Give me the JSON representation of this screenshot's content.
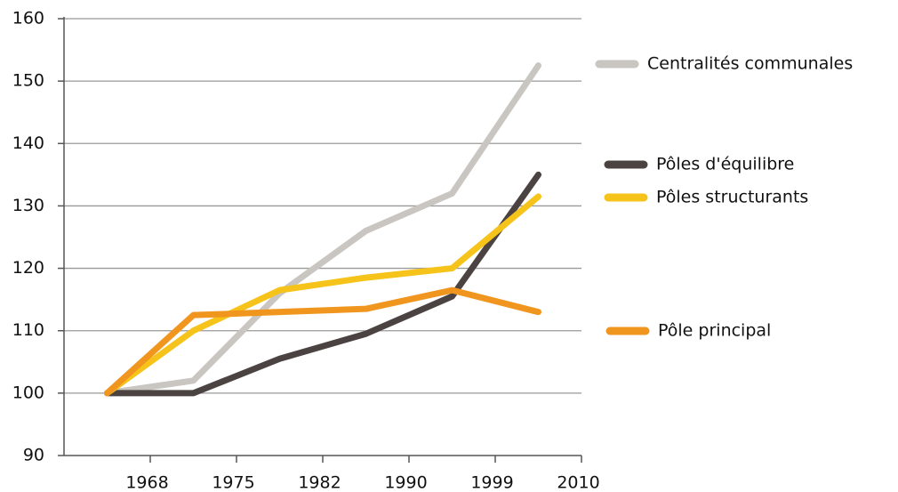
{
  "chart_data": {
    "type": "line",
    "categories": [
      "1968",
      "1975",
      "1982",
      "1990",
      "1999",
      "2010"
    ],
    "series": [
      {
        "name": "Centralités communales",
        "color": "#c9c5c1",
        "values": [
          100,
          102,
          116,
          126,
          132,
          152.5
        ]
      },
      {
        "name": "Pôles d'équilibre",
        "color": "#4b4341",
        "values": [
          100,
          100,
          105.5,
          109.5,
          115.5,
          135
        ]
      },
      {
        "name": "Pôles structurants",
        "color": "#f6c31a",
        "values": [
          100,
          110,
          116.5,
          118.5,
          120,
          131.5
        ]
      },
      {
        "name": "Pôle principal",
        "color": "#f0961f",
        "values": [
          100,
          112.5,
          113,
          113.5,
          116.5,
          113
        ]
      }
    ],
    "ylim": [
      90,
      160
    ],
    "yticks": [
      90,
      100,
      110,
      120,
      130,
      140,
      150,
      160
    ],
    "grid": true
  }
}
